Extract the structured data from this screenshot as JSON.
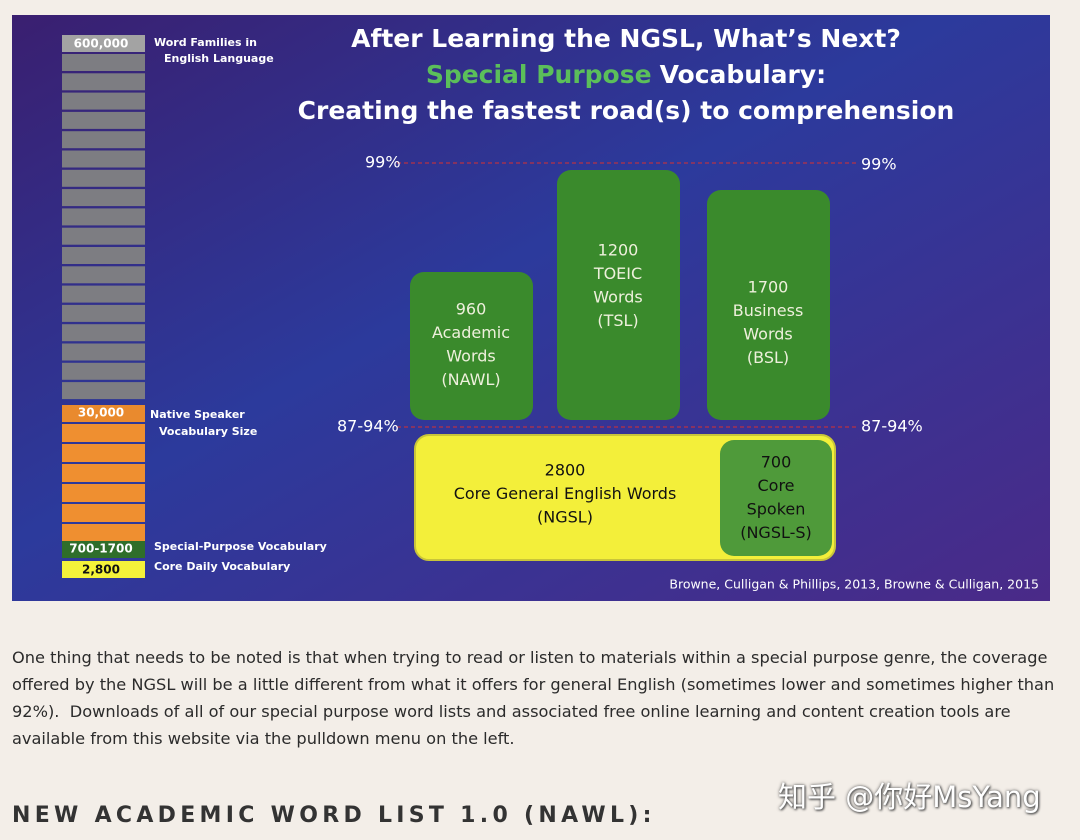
{
  "slide": {
    "title": "After Learning the NGSL, What’s Next?",
    "subtitle": [
      "Special Purpose",
      "Vocabulary:"
    ],
    "tagline": "Creating the fastest road(s) to comprehension",
    "levels": [
      {
        "left": "99%",
        "right": "99%"
      },
      {
        "left": "87-94%",
        "right": "87-94%"
      }
    ],
    "ladder": [
      {
        "value": "600,000",
        "label": [
          "Word Families in",
          "English Language"
        ]
      },
      {
        "value": "30,000",
        "label": [
          "Native Speaker",
          "Vocabulary Size"
        ]
      },
      {
        "value": "700-1700",
        "label": [
          "Special-Purpose Vocabulary"
        ]
      },
      {
        "value": "2,800",
        "label": [
          "Core Daily Vocabulary"
        ]
      }
    ],
    "boxes": [
      {
        "lines": [
          "960",
          "Academic",
          "Words",
          "(NAWL)"
        ]
      },
      {
        "lines": [
          "1200",
          "TOEIC",
          "Words",
          "(TSL)"
        ]
      },
      {
        "lines": [
          "1700",
          "Business",
          "Words",
          "(BSL)"
        ]
      },
      {
        "lines": [
          "2800",
          "Core General English Words",
          "(NGSL)"
        ]
      },
      {
        "lines": [
          "700",
          "Core",
          "Spoken",
          "(NGSL-S)"
        ]
      }
    ],
    "credit": "Browne, Culligan & Phillips, 2013, Browne & Culligan, 2015"
  },
  "paragraph": "One thing that needs to be noted is that when trying to read or listen to materials within a special purpose genre, the coverage offered by the NGSL will be a little different from what it offers for general English (sometimes lower and sometimes higher than 92%).  Downloads of all of our special purpose word lists and associated free online learning and content creation tools are available from this website via the pulldown menu on the left.",
  "heading": "NEW ACADEMIC WORD LIST 1.0 (NAWL):",
  "watermark": "知乎 @你好MsYang"
}
